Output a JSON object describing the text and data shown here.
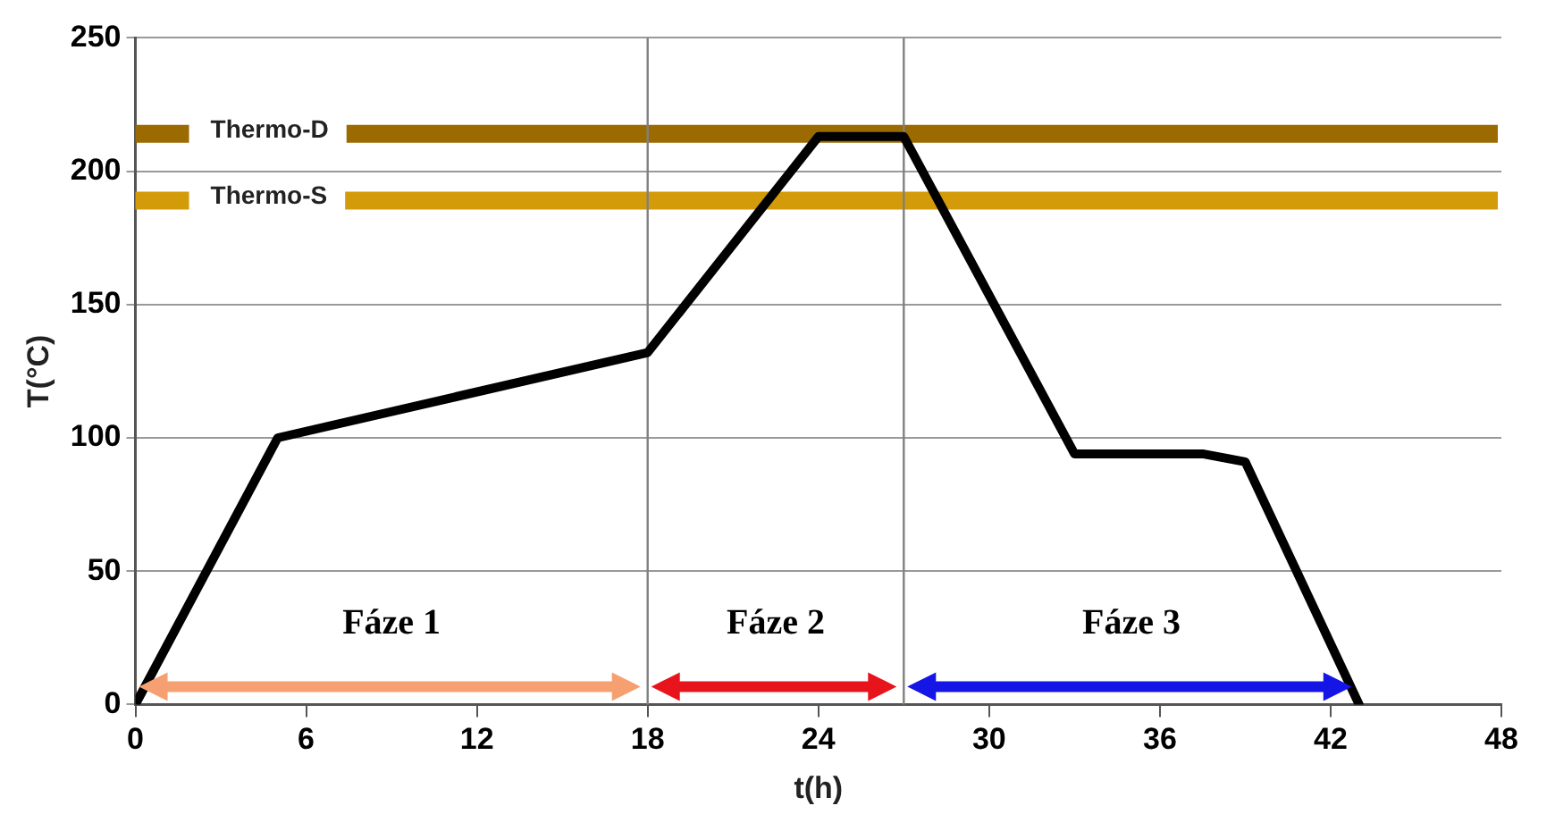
{
  "chart_data": {
    "type": "line",
    "xlabel": "t(h)",
    "ylabel": "T(°C)",
    "x": [
      0,
      5,
      18,
      24,
      27,
      33,
      37.5,
      39,
      43
    ],
    "series": [
      {
        "color": "#000000",
        "values": [
          0,
          100,
          132,
          213,
          213,
          94,
          94,
          91,
          0
        ]
      }
    ],
    "xlim": [
      0,
      48
    ],
    "xticks": [
      0,
      6,
      12,
      18,
      24,
      30,
      36,
      42,
      48
    ],
    "ylim": [
      0,
      250
    ],
    "yticks": [
      0,
      50,
      100,
      150,
      200,
      250
    ],
    "grid": "y",
    "legend": false,
    "marker": "none",
    "line_style": "solid",
    "ref_lines": [
      {
        "axis": "y",
        "value": 214,
        "label": "Thermo-D",
        "color": "#9b6a00"
      },
      {
        "axis": "y",
        "value": 189,
        "label": "Thermo-S",
        "color": "#d39b0a"
      },
      {
        "axis": "x",
        "value": 18,
        "color": "#808080"
      },
      {
        "axis": "x",
        "value": 27,
        "color": "#808080"
      }
    ],
    "annotations": [
      "Fáze 1",
      "Fáze 2",
      "Fáze 3"
    ]
  }
}
